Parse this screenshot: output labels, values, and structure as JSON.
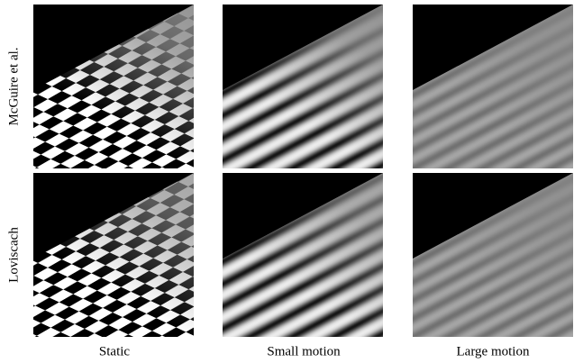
{
  "row_labels": [
    "McGuire et al.",
    "Loviscach"
  ],
  "column_labels": [
    "Static",
    "Small motion",
    "Large motion"
  ]
}
